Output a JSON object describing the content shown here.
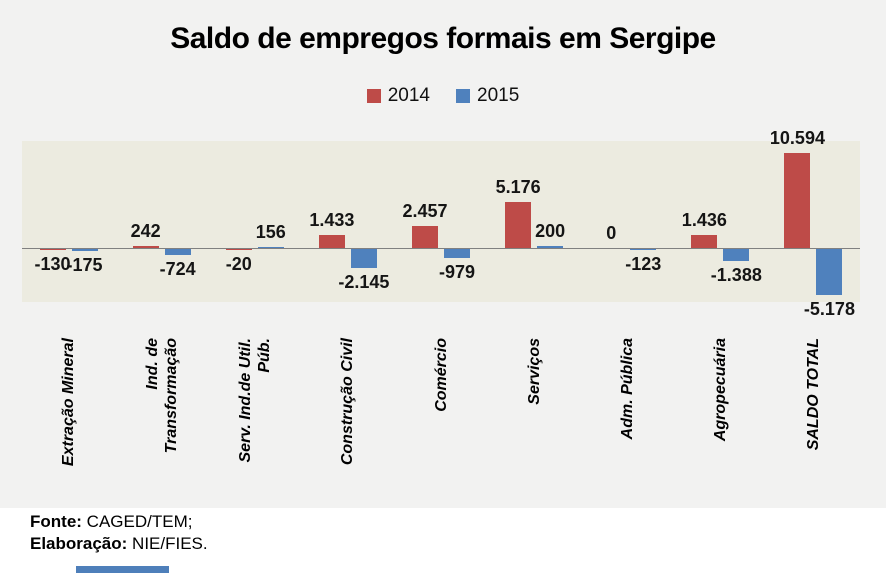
{
  "title": "Saldo de empregos formais em Sergipe",
  "legend": {
    "items": [
      {
        "label": "2014",
        "color": "#BE4B48"
      },
      {
        "label": "2015",
        "color": "#4F81BD"
      }
    ]
  },
  "chart_data": {
    "type": "bar",
    "title": "Saldo de empregos formais em Sergipe",
    "categories": [
      "Extração Mineral",
      "Ind. de\nTransformação",
      "Serv. Ind.de Util.\nPúb.",
      "Construção Civil",
      "Comércio",
      "Serviços",
      "Adm. Pública",
      "Agropecuária",
      "SALDO TOTAL"
    ],
    "series": [
      {
        "name": "2014",
        "color": "#BE4B48",
        "values": [
          -130,
          242,
          -20,
          1433,
          2457,
          5176,
          0,
          1436,
          10594
        ],
        "labels": [
          "-130",
          "242",
          "-20",
          "1.433",
          "2.457",
          "5.176",
          "0",
          "1.436",
          "10.594"
        ]
      },
      {
        "name": "2015",
        "color": "#4F81BD",
        "values": [
          -175,
          -724,
          156,
          -2145,
          -979,
          200,
          -123,
          -1388,
          -5178
        ],
        "labels": [
          "-175",
          "-724",
          "156",
          "-2.145",
          "-979",
          "200",
          "-123",
          "-1.388",
          "-5.178"
        ]
      }
    ],
    "ylim": [
      -6000,
      12000
    ],
    "grid": false,
    "legend_position": "top-center",
    "plot_background": "#ECEBE0",
    "outer_background": "#F2F2F1",
    "axis_line_color": "#808080"
  },
  "footer": {
    "fonte_label": "Fonte:",
    "fonte_value": "CAGED/TEM;",
    "elaboracao_label": "Elaboração:",
    "elaboracao_value": "NIE/FIES."
  }
}
